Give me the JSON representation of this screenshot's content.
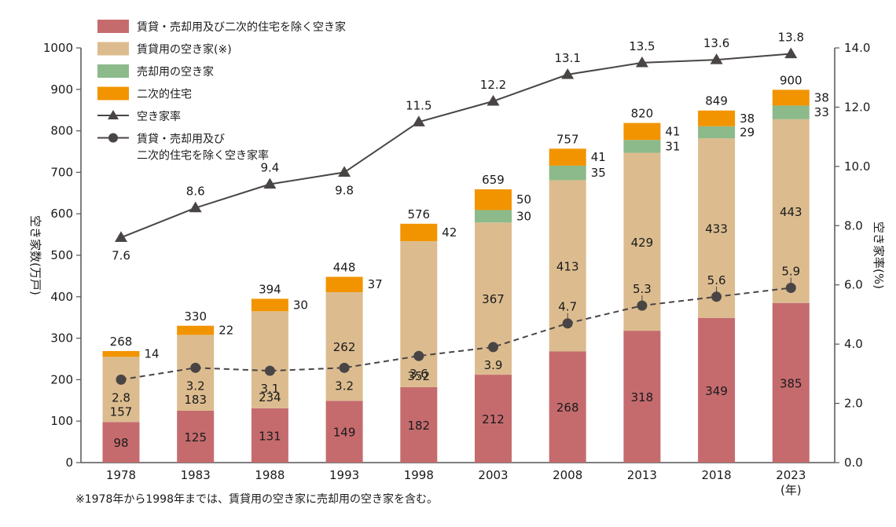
{
  "chart_data": {
    "type": "bar",
    "categories": [
      "1978",
      "1983",
      "1988",
      "1993",
      "1998",
      "2003",
      "2008",
      "2013",
      "2018",
      "2023"
    ],
    "x_unit": "(年)",
    "ylabel": "空き家数(万戸)",
    "ylabel_right": "空き家率(%)",
    "ylim": [
      0,
      1000
    ],
    "y_ticks": [
      "0",
      "100",
      "200",
      "300",
      "400",
      "500",
      "600",
      "700",
      "800",
      "900",
      "1000"
    ],
    "y2lim": [
      0,
      14
    ],
    "y2_ticks": [
      "0.0",
      "2.0",
      "4.0",
      "6.0",
      "8.0",
      "10.0",
      "12.0",
      "14.0"
    ],
    "stacked": true,
    "legend_position": "top-left",
    "grid": false,
    "series": [
      {
        "name": "賃貸・売却用及び二次的住宅を除く空き家",
        "color": "#c56b6e",
        "values": [
          98,
          125,
          131,
          149,
          182,
          212,
          268,
          318,
          349,
          385
        ],
        "labels": [
          "98",
          "125",
          "131",
          "149",
          "182",
          "212",
          "268",
          "318",
          "349",
          "385"
        ]
      },
      {
        "name": "賃貸用の空き家(※)",
        "color": "#dcbc8f",
        "values": [
          157,
          183,
          234,
          262,
          352,
          367,
          413,
          429,
          433,
          443
        ],
        "labels": [
          "157",
          "183",
          "234",
          "262",
          "352",
          "367",
          "413",
          "429",
          "433",
          "443"
        ]
      },
      {
        "name": "売却用の空き家",
        "color": "#8cba8a",
        "values": [
          null,
          null,
          null,
          null,
          null,
          30,
          35,
          31,
          29,
          33
        ],
        "labels": [
          "",
          "",
          "",
          "",
          "",
          "30",
          "35",
          "31",
          "29",
          "33"
        ]
      },
      {
        "name": "二次的住宅",
        "color": "#f29400",
        "values": [
          14,
          22,
          30,
          37,
          42,
          50,
          41,
          41,
          38,
          38
        ],
        "labels": [
          "14",
          "22",
          "30",
          "37",
          "42",
          "50",
          "41",
          "41",
          "38",
          "38"
        ]
      }
    ],
    "totals": [
      "268",
      "330",
      "394",
      "448",
      "576",
      "659",
      "757",
      "820",
      "849",
      "900"
    ],
    "lines": [
      {
        "name": "空き家率",
        "color": "#4a4545",
        "marker": "triangle",
        "style": "solid",
        "values": [
          7.6,
          8.6,
          9.4,
          9.8,
          11.5,
          12.2,
          13.1,
          13.5,
          13.6,
          13.8
        ],
        "labels": [
          "7.6",
          "8.6",
          "9.4",
          "9.8",
          "11.5",
          "12.2",
          "13.1",
          "13.5",
          "13.6",
          "13.8"
        ]
      },
      {
        "name": "賃貸・売却用及び二次的住宅を除く空き家率",
        "legend_lines": [
          "賃貸・売却用及び",
          "二次的住宅を除く空き家率"
        ],
        "color": "#4a4545",
        "marker": "circle",
        "style": "dashed",
        "values": [
          2.8,
          3.2,
          3.1,
          3.2,
          3.6,
          3.9,
          4.7,
          5.3,
          5.6,
          5.9
        ],
        "labels": [
          "2.8",
          "3.2",
          "3.1",
          "3.2",
          "3.6",
          "3.9",
          "4.7",
          "5.3",
          "5.6",
          "5.9"
        ]
      }
    ],
    "footnote": "※1978年から1998年までは、賃貸用の空き家に売却用の空き家を含む。"
  }
}
